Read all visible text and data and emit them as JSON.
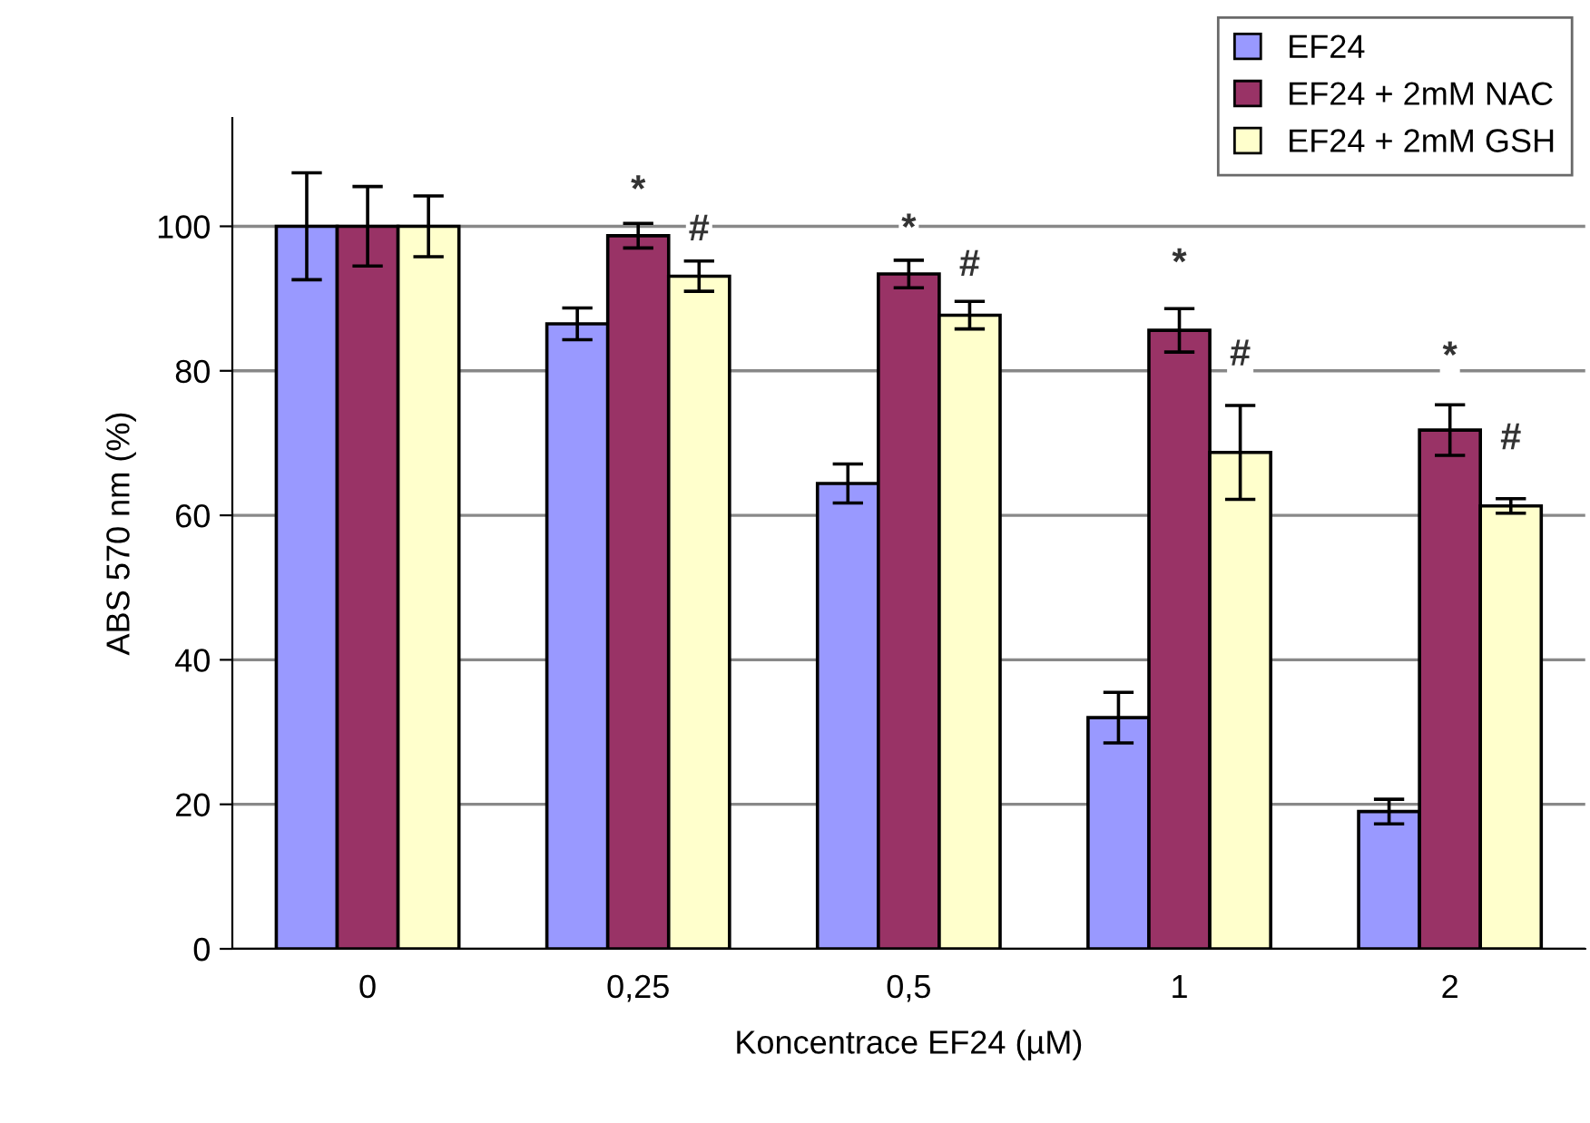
{
  "chart_data": {
    "type": "bar",
    "xlabel": "Koncentrace EF24 (µM)",
    "ylabel": "ABS 570 nm (%)",
    "categories": [
      "0",
      "0,25",
      "0,5",
      "1",
      "2"
    ],
    "series": [
      {
        "name": "EF24",
        "color": "#9999ff",
        "values": [
          100,
          86.5,
          64.4,
          32.0,
          19.0
        ],
        "errors": [
          7.4,
          2.2,
          2.7,
          3.5,
          1.7
        ]
      },
      {
        "name": "EF24 + 2mM NAC",
        "color": "#993366",
        "values": [
          100,
          98.7,
          93.4,
          85.6,
          71.8
        ],
        "errors": [
          5.5,
          1.7,
          1.9,
          3.0,
          3.5
        ]
      },
      {
        "name": "EF24 + 2mM GSH",
        "color": "#ffffcc",
        "values": [
          100,
          93.1,
          87.7,
          68.7,
          61.3
        ],
        "errors": [
          4.2,
          2.1,
          1.9,
          6.5,
          1.0
        ]
      }
    ],
    "ylim": [
      0,
      115
    ],
    "yticks": [
      0,
      20,
      40,
      60,
      80,
      100
    ],
    "grid": "y",
    "legend": "top right",
    "annotations": [
      {
        "text": "*",
        "x": "0,25",
        "y": 104.8
      },
      {
        "text": "#",
        "x": "0,25",
        "y": 99.4
      },
      {
        "text": "*",
        "x": "0,5",
        "y": 99.5
      },
      {
        "text": "#",
        "x": "0,5",
        "y": 94.5
      },
      {
        "text": "*",
        "x": "1",
        "y": 94.7
      },
      {
        "text": "#",
        "x": "1",
        "y": 82.1
      },
      {
        "text": "*",
        "x": "2",
        "y": 81.8
      },
      {
        "text": "#",
        "x": "2",
        "y": 70.5
      }
    ]
  }
}
